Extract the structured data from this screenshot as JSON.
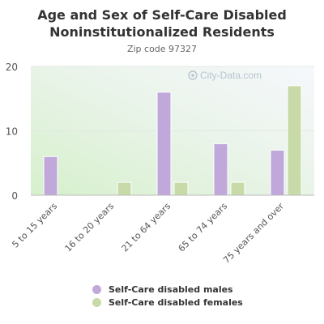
{
  "chart_data": {
    "type": "bar",
    "title": "Age and Sex of Self-Care Disabled Noninstitutionalized Residents",
    "subtitle": "Zip code 97327",
    "categories": [
      "5 to 15 years",
      "16 to 20 years",
      "21 to 64 years",
      "65 to 74 years",
      "75 years and over"
    ],
    "series": [
      {
        "name": "Self-Care disabled males",
        "values": [
          6,
          0,
          16,
          8,
          7
        ],
        "color": "#c0a8da"
      },
      {
        "name": "Self-Care disabled females",
        "values": [
          0,
          2,
          2,
          2,
          17
        ],
        "color": "#c8daa8"
      }
    ],
    "yticks": [
      0,
      10,
      20
    ],
    "ylim": [
      0,
      20
    ],
    "legend_position": "bottom",
    "watermark": "City-Data.com"
  }
}
